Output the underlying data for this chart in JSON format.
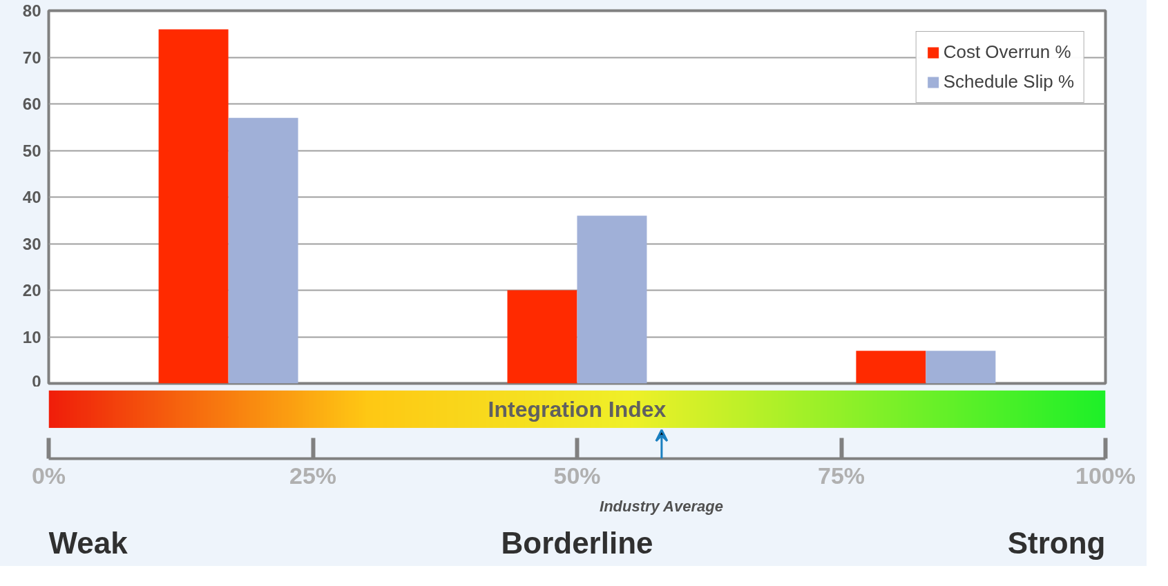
{
  "chart_data": {
    "type": "bar",
    "xlabel": "Integration Index",
    "x": [
      17,
      50,
      83
    ],
    "series": [
      {
        "name": "Cost Overrun %",
        "color": "#ff2a00",
        "values": [
          76,
          20,
          7
        ]
      },
      {
        "name": "Schedule Slip %",
        "color": "#a0b0d8",
        "values": [
          57,
          36,
          7
        ]
      }
    ],
    "xlim": [
      0,
      100
    ],
    "xticks": [
      {
        "value": 0,
        "label": "0%"
      },
      {
        "value": 25,
        "label": "25%"
      },
      {
        "value": 50,
        "label": "50%"
      },
      {
        "value": 75,
        "label": "75%"
      },
      {
        "value": 100,
        "label": "100%"
      }
    ],
    "ylim": [
      0,
      80
    ],
    "yticks": [
      0,
      10,
      20,
      30,
      40,
      50,
      60,
      70,
      80
    ],
    "grid": "y",
    "legend": "top right",
    "annotations": [
      "Weak",
      "Borderline",
      "Strong",
      "Industry Average"
    ]
  }
}
